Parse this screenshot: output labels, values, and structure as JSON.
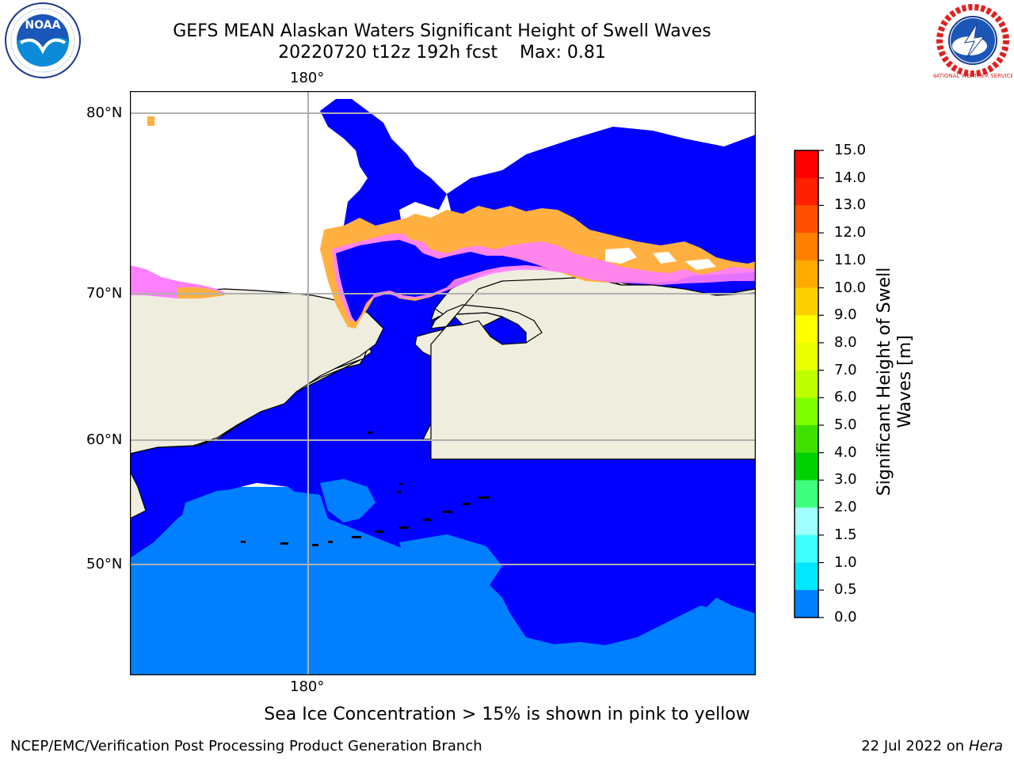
{
  "header": {
    "title_line1": "GEFS MEAN Alaskan Waters Significant Height of Swell Waves",
    "title_line2": "20220720 t12z 192h fcst    Max: 0.81"
  },
  "logos": {
    "left": "NOAA",
    "right": "NATIONAL WEATHER SERVICE"
  },
  "map": {
    "lon_label_top": "180°",
    "lon_label_bottom": "180°",
    "lat_labels": [
      "80°N",
      "70°N",
      "60°N",
      "50°N"
    ],
    "colors": {
      "land": "#efedde",
      "swell_0_0_5": "#0000ff",
      "swell_0_5_1_0": "#0080ff",
      "ice_pink": "#ff80ff",
      "ice_orange": "#ffb040",
      "ice_yellow": "#ffff00",
      "grid": "#b0b0b0"
    }
  },
  "colorbar": {
    "title": "Significant Height of Swell Waves [m]",
    "title_line1": "Significant Height of Swell",
    "title_line2": "Waves [m]",
    "ticks": [
      "15.0",
      "14.0",
      "13.0",
      "12.0",
      "11.0",
      "10.0",
      "9.0",
      "8.0",
      "7.0",
      "6.0",
      "5.0",
      "4.0",
      "3.0",
      "2.0",
      "1.5",
      "1.0",
      "0.5",
      "0.0"
    ],
    "colors": [
      "#ff0000",
      "#ff2000",
      "#ff5000",
      "#ff8000",
      "#ffaa00",
      "#ffd000",
      "#ffff00",
      "#e8ff00",
      "#c0ff00",
      "#80ff00",
      "#40e000",
      "#00d000",
      "#40ff80",
      "#a0ffff",
      "#40ffff",
      "#00e8ff",
      "#0080ff",
      "#0000ff"
    ]
  },
  "note": "Sea Ice Concentration > 15% is shown in pink to yellow",
  "footer": {
    "left": "NCEP/EMC/Verification Post Processing Product Generation Branch",
    "right_prefix": "22 Jul 2022 on ",
    "right_machine": "Hera"
  }
}
